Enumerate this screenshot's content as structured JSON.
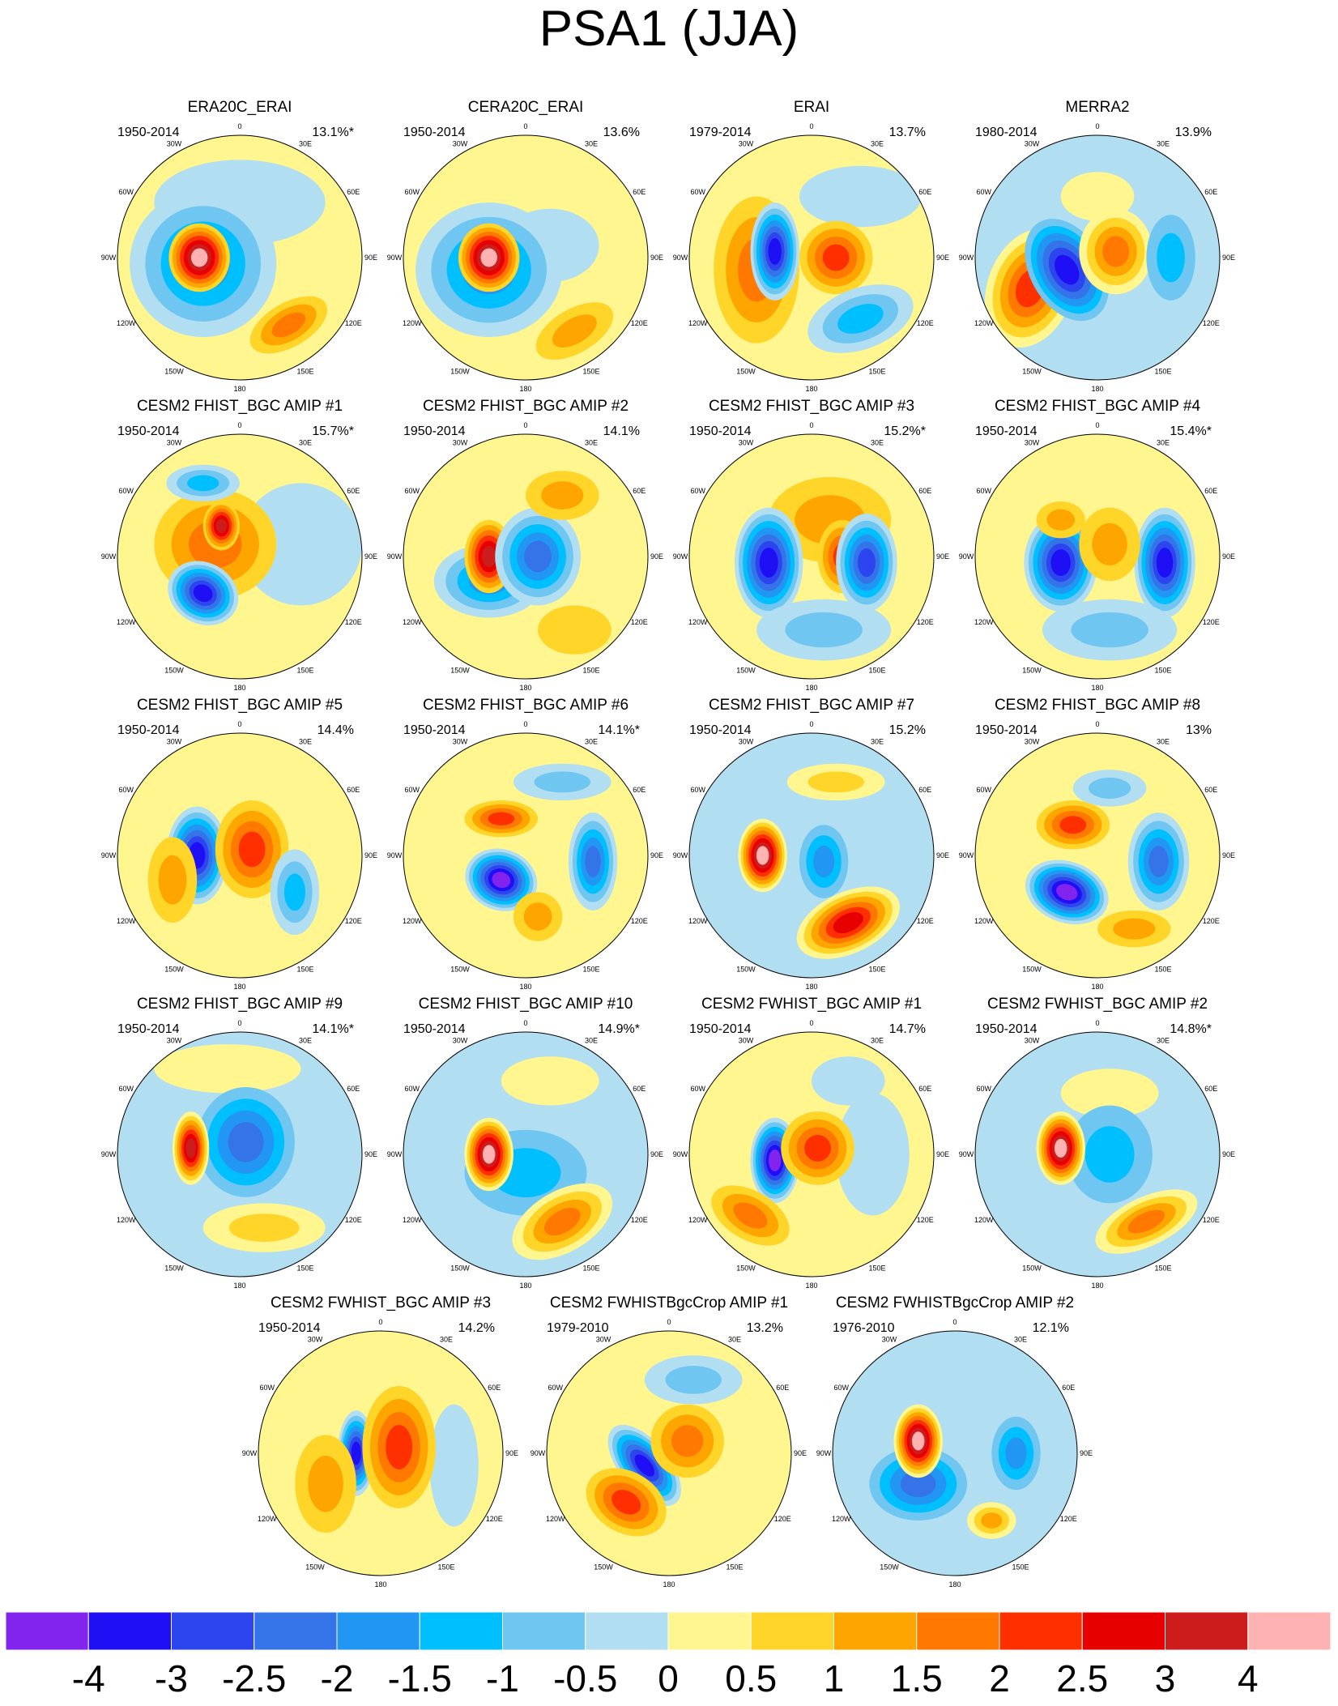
{
  "title": "PSA1 (JJA)",
  "longitude_labels": [
    "0",
    "30E",
    "60E",
    "90E",
    "120E",
    "150E",
    "180",
    "150W",
    "120W",
    "90W",
    "60W",
    "30W"
  ],
  "panels": [
    {
      "title": "ERA20C_ERAI",
      "period": "1950-2014",
      "variance": "13.1%*"
    },
    {
      "title": "CERA20C_ERAI",
      "period": "1950-2014",
      "variance": "13.6%"
    },
    {
      "title": "ERAI",
      "period": "1979-2014",
      "variance": "13.7%"
    },
    {
      "title": "MERRA2",
      "period": "1980-2014",
      "variance": "13.9%"
    },
    {
      "title": "CESM2 FHIST_BGC AMIP #1",
      "period": "1950-2014",
      "variance": "15.7%*"
    },
    {
      "title": "CESM2 FHIST_BGC AMIP #2",
      "period": "1950-2014",
      "variance": "14.1%"
    },
    {
      "title": "CESM2 FHIST_BGC AMIP #3",
      "period": "1950-2014",
      "variance": "15.2%*"
    },
    {
      "title": "CESM2 FHIST_BGC AMIP #4",
      "period": "1950-2014",
      "variance": "15.4%*"
    },
    {
      "title": "CESM2 FHIST_BGC AMIP #5",
      "period": "1950-2014",
      "variance": "14.4%"
    },
    {
      "title": "CESM2 FHIST_BGC AMIP #6",
      "period": "1950-2014",
      "variance": "14.1%*"
    },
    {
      "title": "CESM2 FHIST_BGC AMIP #7",
      "period": "1950-2014",
      "variance": "15.2%"
    },
    {
      "title": "CESM2 FHIST_BGC AMIP #8",
      "period": "1950-2014",
      "variance": "13%"
    },
    {
      "title": "CESM2 FHIST_BGC AMIP #9",
      "period": "1950-2014",
      "variance": "14.1%*"
    },
    {
      "title": "CESM2 FHIST_BGC AMIP #10",
      "period": "1950-2014",
      "variance": "14.9%*"
    },
    {
      "title": "CESM2 FWHIST_BGC AMIP #1",
      "period": "1950-2014",
      "variance": "14.7%"
    },
    {
      "title": "CESM2 FWHIST_BGC AMIP #2",
      "period": "1950-2014",
      "variance": "14.8%*"
    },
    {
      "title": "CESM2 FWHIST_BGC AMIP #3",
      "period": "1950-2014",
      "variance": "14.2%"
    },
    {
      "title": "CESM2 FWHISTBgcCrop AMIP #1",
      "period": "1979-2010",
      "variance": "13.2%"
    },
    {
      "title": "CESM2 FWHISTBgcCrop AMIP #2",
      "period": "1976-2010",
      "variance": "12.1%"
    }
  ],
  "colorbar": {
    "colors": [
      "#8224ee",
      "#1f0ff5",
      "#2d45ee",
      "#3474e8",
      "#2196f3",
      "#00bfff",
      "#6fc6f0",
      "#b2def2",
      "#fff68f",
      "#ffd52a",
      "#ffa500",
      "#ff7800",
      "#ff3000",
      "#e60000",
      "#cc1c1c",
      "#ffb2b2"
    ],
    "labels": [
      -4,
      -3,
      -2.5,
      -2,
      -1.5,
      -1,
      -0.5,
      0,
      0.5,
      1,
      1.5,
      2,
      2.5,
      3,
      4
    ]
  }
}
